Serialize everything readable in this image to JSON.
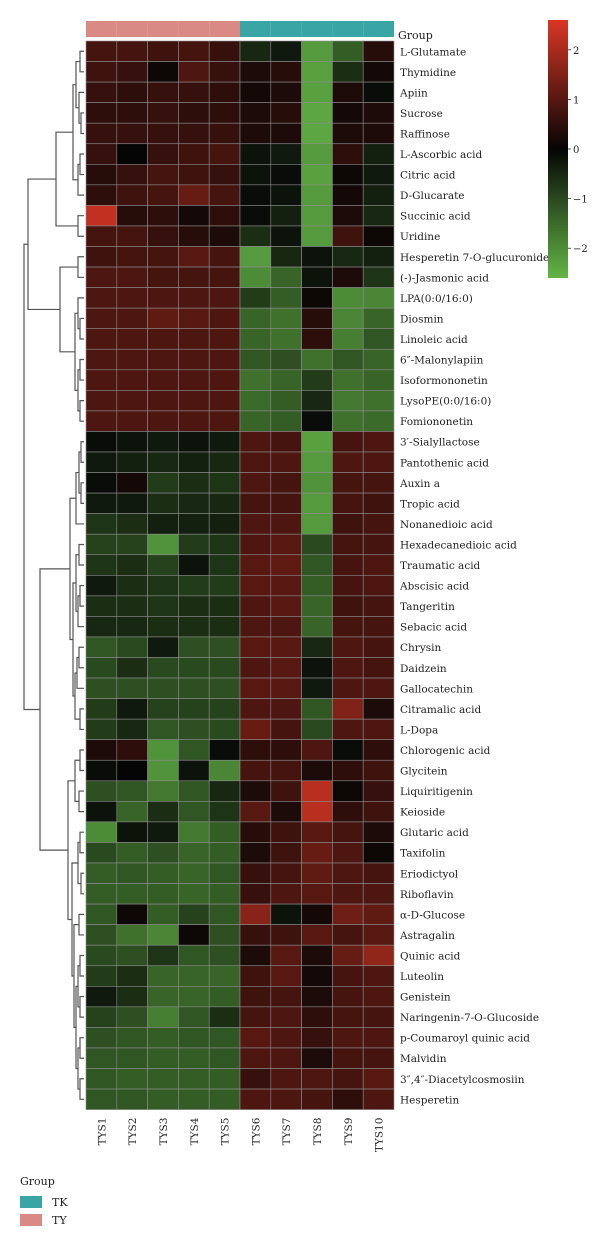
{
  "chart_data": {
    "type": "heatmap",
    "group_bar_label": "Group",
    "samples": [
      "TYS1",
      "TYS2",
      "TYS3",
      "TYS4",
      "TYS5",
      "TYS6",
      "TYS7",
      "TYS8",
      "TYS9",
      "TYS10"
    ],
    "sample_groups": [
      "TY",
      "TY",
      "TY",
      "TY",
      "TY",
      "TK",
      "TK",
      "TK",
      "TK",
      "TK"
    ],
    "group_colors": {
      "TK": "#3aa5a5",
      "TY": "#d98a84"
    },
    "group_legend": {
      "title": "Group",
      "items": [
        "TK",
        "TY"
      ]
    },
    "color_scale": {
      "ticks": [
        2,
        1,
        0,
        -1,
        -2
      ],
      "tick_labels": [
        "2",
        "1",
        "0",
        "−1",
        "−2"
      ],
      "range": [
        -2.6,
        2.6
      ],
      "colors": {
        "low": "#63b546",
        "mid": "#050505",
        "high": "#d93624"
      }
    },
    "rows": [
      {
        "label": "L-Glutamate",
        "values": [
          0.8,
          0.8,
          0.7,
          0.8,
          0.6,
          -0.5,
          -0.3,
          -2.2,
          -1.3,
          0.4
        ]
      },
      {
        "label": "Thymidine",
        "values": [
          0.7,
          0.6,
          0.1,
          0.9,
          0.6,
          0.3,
          0.4,
          -2.3,
          -0.6,
          0.2
        ]
      },
      {
        "label": "Apiin",
        "values": [
          0.6,
          0.5,
          0.6,
          0.6,
          0.5,
          0.2,
          0.3,
          -2.3,
          0.3,
          -0.1
        ]
      },
      {
        "label": "Sucrose",
        "values": [
          0.5,
          0.5,
          0.6,
          0.5,
          0.5,
          0.3,
          0.4,
          -2.4,
          0.2,
          0.3
        ]
      },
      {
        "label": "Raffinose",
        "values": [
          0.6,
          0.6,
          0.6,
          0.6,
          0.6,
          0.3,
          0.3,
          -2.4,
          0.3,
          0.3
        ]
      },
      {
        "label": "L-Ascorbic acid",
        "values": [
          0.6,
          0.0,
          0.6,
          0.7,
          0.8,
          -0.2,
          -0.3,
          -2.2,
          0.5,
          -0.4
        ]
      },
      {
        "label": "Citric acid",
        "values": [
          0.4,
          0.6,
          0.8,
          0.7,
          0.6,
          -0.2,
          -0.1,
          -2.3,
          0.1,
          -0.3
        ]
      },
      {
        "label": "D-Glucarate",
        "values": [
          0.5,
          0.7,
          0.8,
          1.2,
          0.8,
          -0.1,
          -0.2,
          -2.2,
          0.2,
          -0.4
        ]
      },
      {
        "label": "Succinic acid",
        "values": [
          2.3,
          0.4,
          0.5,
          0.2,
          0.5,
          -0.1,
          -0.4,
          -2.2,
          0.3,
          -0.5
        ]
      },
      {
        "label": "Uridine",
        "values": [
          0.8,
          0.8,
          0.6,
          0.4,
          0.3,
          -0.6,
          -0.2,
          -2.2,
          0.7,
          0.1
        ]
      },
      {
        "label": "Hesperetin 7-O-glucuronide",
        "values": [
          0.7,
          0.8,
          0.8,
          1.0,
          0.8,
          -2.2,
          -0.5,
          -0.2,
          -0.5,
          -0.4
        ]
      },
      {
        "label": "(-)-Jasmonic acid",
        "values": [
          0.9,
          0.9,
          0.8,
          0.8,
          0.8,
          -2.0,
          -1.4,
          -0.2,
          0.3,
          -0.7
        ]
      },
      {
        "label": "LPA(0:0/16:0)",
        "values": [
          0.9,
          0.9,
          0.9,
          0.9,
          0.9,
          -0.8,
          -1.3,
          0.1,
          -2.0,
          -1.9
        ]
      },
      {
        "label": "Diosmin",
        "values": [
          0.9,
          0.9,
          1.1,
          1.0,
          0.9,
          -1.4,
          -1.6,
          0.4,
          -1.9,
          -1.4
        ]
      },
      {
        "label": "Linoleic acid",
        "values": [
          0.9,
          0.9,
          0.9,
          0.9,
          0.9,
          -1.4,
          -1.6,
          0.5,
          -1.8,
          -1.2
        ]
      },
      {
        "label": "6″-Malonylapiin",
        "values": [
          0.9,
          0.9,
          0.9,
          0.9,
          0.9,
          -1.2,
          -1.1,
          -1.6,
          -1.2,
          -1.4
        ]
      },
      {
        "label": "Isoformononetin",
        "values": [
          0.9,
          0.9,
          0.9,
          0.9,
          0.9,
          -1.6,
          -1.4,
          -0.8,
          -1.6,
          -1.4
        ]
      },
      {
        "label": "LysoPE(0:0/16:0)",
        "values": [
          0.9,
          0.9,
          0.9,
          0.9,
          0.9,
          -1.5,
          -1.3,
          -0.5,
          -1.7,
          -1.6
        ]
      },
      {
        "label": "Fomiononetin",
        "values": [
          0.9,
          0.9,
          0.9,
          0.9,
          0.9,
          -1.4,
          -1.3,
          -0.1,
          -1.6,
          -1.5
        ]
      },
      {
        "label": "3′-Sialyllactose",
        "values": [
          -0.1,
          -0.2,
          -0.3,
          -0.2,
          -0.3,
          0.9,
          0.8,
          -2.3,
          0.8,
          0.9
        ]
      },
      {
        "label": "Pantothenic acid",
        "values": [
          -0.3,
          -0.4,
          -0.5,
          -0.4,
          -0.5,
          0.9,
          0.9,
          -2.2,
          0.9,
          0.9
        ]
      },
      {
        "label": "Auxin a",
        "values": [
          -0.1,
          0.2,
          -0.8,
          -0.6,
          -0.7,
          0.9,
          0.8,
          -2.1,
          0.8,
          0.8
        ]
      },
      {
        "label": "Tropic acid",
        "values": [
          -0.3,
          -0.3,
          -0.6,
          -0.5,
          -0.5,
          0.8,
          0.8,
          -2.2,
          0.8,
          0.7
        ]
      },
      {
        "label": "Nonanedioic acid",
        "values": [
          -0.7,
          -0.6,
          -0.4,
          -0.4,
          -0.4,
          0.9,
          0.9,
          -2.2,
          0.7,
          0.8
        ]
      },
      {
        "label": "Hexadecanedioic acid",
        "values": [
          -0.9,
          -0.9,
          -2.1,
          -0.8,
          -0.7,
          0.9,
          1.0,
          -1.0,
          0.8,
          0.8
        ]
      },
      {
        "label": "Traumatic acid",
        "values": [
          -0.7,
          -0.6,
          -0.9,
          -0.2,
          -0.7,
          1.0,
          1.1,
          -1.2,
          0.8,
          0.9
        ]
      },
      {
        "label": "Abscisic acid",
        "values": [
          -0.3,
          -0.6,
          -0.7,
          -0.8,
          -0.8,
          1.0,
          1.0,
          -1.3,
          0.8,
          0.9
        ]
      },
      {
        "label": "Tangeritin",
        "values": [
          -0.6,
          -0.6,
          -0.7,
          -0.6,
          -0.6,
          0.9,
          1.0,
          -1.4,
          0.7,
          0.8
        ]
      },
      {
        "label": "Sebacic acid",
        "values": [
          -0.5,
          -0.5,
          -0.6,
          -0.6,
          -0.6,
          0.9,
          0.9,
          -1.4,
          0.8,
          0.8
        ]
      },
      {
        "label": "Chrysin",
        "values": [
          -1.2,
          -1.0,
          -0.3,
          -1.1,
          -1.1,
          1.0,
          1.0,
          -0.5,
          0.9,
          0.8
        ]
      },
      {
        "label": "Daidzein",
        "values": [
          -1.0,
          -0.6,
          -1.0,
          -1.0,
          -1.0,
          0.9,
          1.0,
          -0.2,
          0.9,
          0.8
        ]
      },
      {
        "label": "Gallocatechin",
        "values": [
          -1.1,
          -1.1,
          -1.1,
          -1.1,
          -1.1,
          1.0,
          1.0,
          -0.3,
          0.9,
          0.9
        ]
      },
      {
        "label": "Citramalic acid",
        "values": [
          -0.8,
          -0.3,
          -0.9,
          -0.9,
          -0.9,
          0.9,
          0.9,
          -1.2,
          1.5,
          0.3
        ]
      },
      {
        "label": "L-Dopa",
        "values": [
          -0.8,
          -0.5,
          -1.2,
          -1.1,
          -1.0,
          1.2,
          0.8,
          -1.0,
          0.9,
          0.9
        ]
      },
      {
        "label": "Chlorogenic acid",
        "values": [
          0.3,
          0.5,
          -2.1,
          -1.2,
          -0.1,
          0.5,
          0.5,
          0.9,
          -0.1,
          0.5
        ]
      },
      {
        "label": "Glycitein",
        "values": [
          -0.1,
          0.0,
          -2.1,
          -0.2,
          -1.9,
          0.8,
          0.8,
          0.3,
          0.5,
          0.7
        ]
      },
      {
        "label": "Liquiritigenin",
        "values": [
          -1.1,
          -1.2,
          -1.7,
          -1.2,
          -0.5,
          0.3,
          0.7,
          2.2,
          0.1,
          0.6
        ]
      },
      {
        "label": "Keioside",
        "values": [
          -0.2,
          -1.4,
          -0.6,
          -1.2,
          -0.7,
          1.0,
          0.3,
          2.2,
          0.5,
          0.7
        ]
      },
      {
        "label": "Glutaric acid",
        "values": [
          -2.0,
          -0.2,
          -0.3,
          -1.7,
          -1.3,
          0.4,
          0.7,
          1.0,
          0.8,
          0.3
        ]
      },
      {
        "label": "Taxifolin",
        "values": [
          -1.0,
          -1.3,
          -1.1,
          -1.4,
          -1.3,
          0.3,
          0.7,
          1.2,
          0.9,
          0.1
        ]
      },
      {
        "label": "Eriodictyol",
        "values": [
          -1.3,
          -1.2,
          -1.3,
          -1.4,
          -1.2,
          0.6,
          0.8,
          1.1,
          0.9,
          0.8
        ]
      },
      {
        "label": "Riboflavin",
        "values": [
          -1.3,
          -1.3,
          -1.3,
          -1.4,
          -1.3,
          0.6,
          0.9,
          1.0,
          0.9,
          0.9
        ]
      },
      {
        "label": "α-D-Glucose",
        "values": [
          -1.2,
          0.1,
          -1.3,
          -0.9,
          -1.2,
          1.6,
          -0.2,
          0.2,
          1.3,
          1.1
        ]
      },
      {
        "label": "Astragalin",
        "values": [
          -1.1,
          -1.6,
          -1.9,
          0.1,
          -1.1,
          0.6,
          0.7,
          1.0,
          0.8,
          1.0
        ]
      },
      {
        "label": "Quinic acid",
        "values": [
          -1.0,
          -1.1,
          -0.7,
          -1.2,
          -1.1,
          0.3,
          1.0,
          0.3,
          1.2,
          1.7
        ]
      },
      {
        "label": "Luteolin",
        "values": [
          -0.8,
          -0.6,
          -1.4,
          -1.4,
          -1.4,
          0.7,
          1.0,
          0.2,
          0.8,
          0.9
        ]
      },
      {
        "label": "Genistein",
        "values": [
          -0.3,
          -0.6,
          -1.4,
          -1.4,
          -1.3,
          0.7,
          0.8,
          0.3,
          0.8,
          0.9
        ]
      },
      {
        "label": "Naringenin-7-O-Glucoside",
        "values": [
          -0.9,
          -1.1,
          -1.8,
          -1.2,
          -0.6,
          0.8,
          0.9,
          0.5,
          0.8,
          0.8
        ]
      },
      {
        "label": "p-Coumaroyl quinic acid",
        "values": [
          -1.1,
          -1.2,
          -1.3,
          -1.2,
          -1.2,
          1.0,
          0.9,
          0.6,
          0.9,
          0.9
        ]
      },
      {
        "label": "Malvidin",
        "values": [
          -1.2,
          -1.2,
          -1.3,
          -1.3,
          -1.2,
          0.9,
          0.9,
          0.3,
          0.8,
          0.8
        ]
      },
      {
        "label": "3″,4″-Diacetylcosmosiin",
        "values": [
          -1.2,
          -1.3,
          -1.3,
          -1.3,
          -1.3,
          0.6,
          0.9,
          0.9,
          0.8,
          1.0
        ]
      },
      {
        "label": "Hesperetin",
        "values": [
          -1.2,
          -1.2,
          -1.3,
          -1.3,
          -1.3,
          0.9,
          0.9,
          0.8,
          0.5,
          0.9
        ]
      }
    ]
  }
}
